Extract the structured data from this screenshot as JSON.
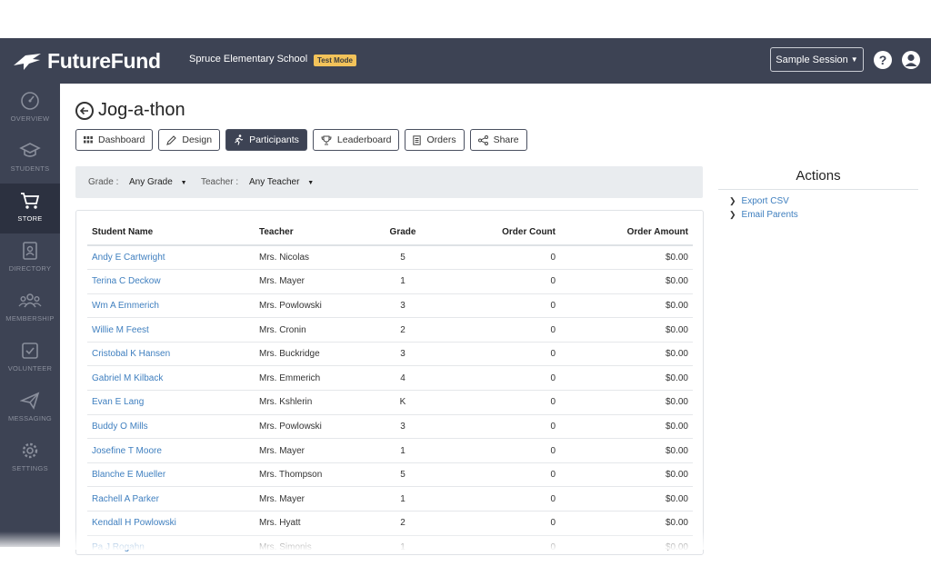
{
  "brand": {
    "name": "FutureFund"
  },
  "header": {
    "school": "Spruce Elementary School",
    "mode_badge": "Test Mode",
    "session_button": "Sample Session",
    "help_icon": "help-icon",
    "user_icon": "user-icon"
  },
  "sidebar": {
    "items": [
      {
        "label": "OVERVIEW",
        "icon": "gauge-icon",
        "active": false
      },
      {
        "label": "STUDENTS",
        "icon": "graduation-cap-icon",
        "active": false
      },
      {
        "label": "STORE",
        "icon": "cart-icon",
        "active": true
      },
      {
        "label": "DIRECTORY",
        "icon": "contact-book-icon",
        "active": false
      },
      {
        "label": "MEMBERSHIP",
        "icon": "group-icon",
        "active": false
      },
      {
        "label": "VOLUNTEER",
        "icon": "checkbox-icon",
        "active": false
      },
      {
        "label": "MESSAGING",
        "icon": "paper-plane-icon",
        "active": false
      },
      {
        "label": "SETTINGS",
        "icon": "gear-icon",
        "active": false
      }
    ]
  },
  "page": {
    "title": "Jog-a-thon"
  },
  "tabs": [
    {
      "label": "Dashboard",
      "icon": "grid-icon",
      "active": false
    },
    {
      "label": "Design",
      "icon": "pencil-icon",
      "active": false
    },
    {
      "label": "Participants",
      "icon": "runner-icon",
      "active": true
    },
    {
      "label": "Leaderboard",
      "icon": "trophy-icon",
      "active": false
    },
    {
      "label": "Orders",
      "icon": "receipt-icon",
      "active": false
    },
    {
      "label": "Share",
      "icon": "share-icon",
      "active": false
    }
  ],
  "filters": {
    "grade_label": "Grade :",
    "grade_value": "Any Grade",
    "teacher_label": "Teacher :",
    "teacher_value": "Any Teacher"
  },
  "table": {
    "columns": [
      "Student Name",
      "Teacher",
      "Grade",
      "Order Count",
      "Order Amount"
    ],
    "rows": [
      [
        "Andy E Cartwright",
        "Mrs. Nicolas",
        "5",
        "0",
        "$0.00"
      ],
      [
        "Terina C Deckow",
        "Mrs. Mayer",
        "1",
        "0",
        "$0.00"
      ],
      [
        "Wm A Emmerich",
        "Mrs. Powlowski",
        "3",
        "0",
        "$0.00"
      ],
      [
        "Willie M Feest",
        "Mrs. Cronin",
        "2",
        "0",
        "$0.00"
      ],
      [
        "Cristobal K Hansen",
        "Mrs. Buckridge",
        "3",
        "0",
        "$0.00"
      ],
      [
        "Gabriel M Kilback",
        "Mrs. Emmerich",
        "4",
        "0",
        "$0.00"
      ],
      [
        "Evan E Lang",
        "Mrs. Kshlerin",
        "K",
        "0",
        "$0.00"
      ],
      [
        "Buddy O Mills",
        "Mrs. Powlowski",
        "3",
        "0",
        "$0.00"
      ],
      [
        "Josefine T Moore",
        "Mrs. Mayer",
        "1",
        "0",
        "$0.00"
      ],
      [
        "Blanche E Mueller",
        "Mrs. Thompson",
        "5",
        "0",
        "$0.00"
      ],
      [
        "Rachell A Parker",
        "Mrs. Mayer",
        "1",
        "0",
        "$0.00"
      ],
      [
        "Kendall H Powlowski",
        "Mrs. Hyatt",
        "2",
        "0",
        "$0.00"
      ],
      [
        "Pa J Rogahn",
        "Mrs. Simonis",
        "1",
        "0",
        "$0.00"
      ]
    ]
  },
  "actions": {
    "title": "Actions",
    "items": [
      "Export CSV",
      "Email Parents"
    ]
  },
  "colors": {
    "nav_bg": "#3d4354",
    "link": "#3f7fbf",
    "badge": "#f3c35a"
  }
}
